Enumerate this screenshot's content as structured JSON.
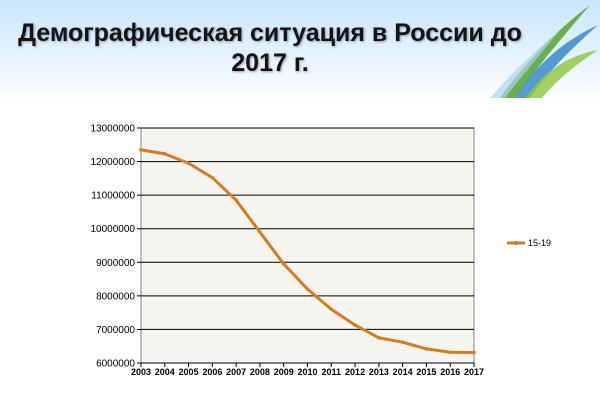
{
  "slide": {
    "title": "Демографическая ситуация в России до 2017 г."
  },
  "colors": {
    "series": "#d47c1f",
    "plot_bg": "#f5f4ef",
    "grid": "#000000",
    "banner": "#c9e6fb",
    "deco_green": "#5da63b",
    "deco_blue": "#3b89c9"
  },
  "chart_data": {
    "type": "line",
    "title": "",
    "xlabel": "",
    "ylabel": "",
    "x": [
      "2003",
      "2004",
      "2005",
      "2006",
      "2007",
      "2008",
      "2009",
      "2010",
      "2011",
      "2012",
      "2013",
      "2014",
      "2015",
      "2016",
      "2017"
    ],
    "ylim": [
      6000000,
      13000000
    ],
    "yticks": [
      6000000,
      7000000,
      8000000,
      9000000,
      10000000,
      11000000,
      12000000,
      13000000
    ],
    "grid": true,
    "legend": "right",
    "series": [
      {
        "name": "15-19",
        "values": [
          12350000,
          12230000,
          11950000,
          11520000,
          10850000,
          9900000,
          8950000,
          8200000,
          7600000,
          7130000,
          6750000,
          6620000,
          6420000,
          6320000,
          6310000
        ]
      }
    ]
  }
}
